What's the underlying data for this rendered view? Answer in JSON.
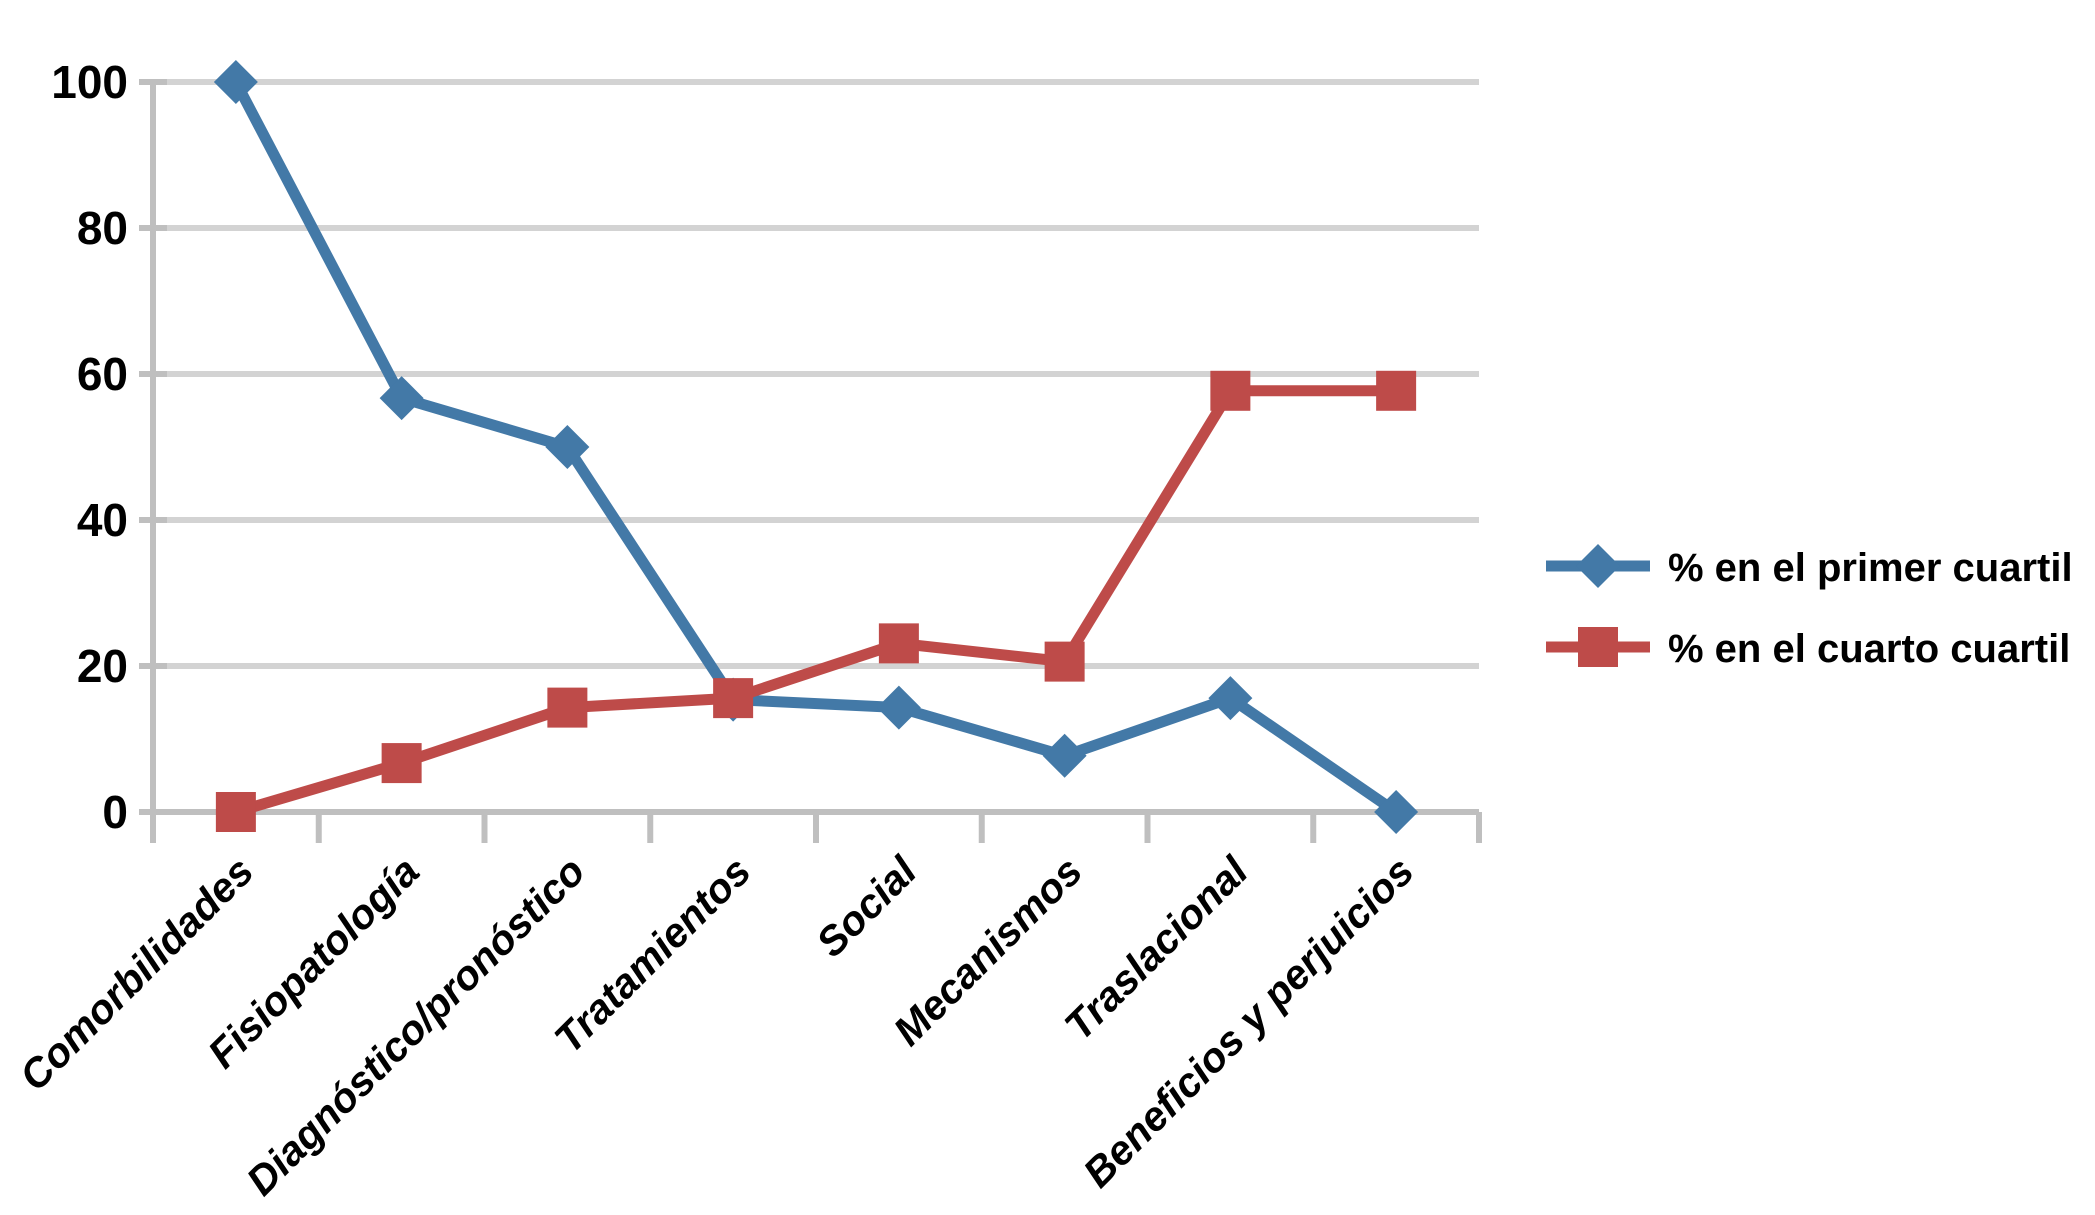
{
  "chart_data": {
    "type": "line",
    "title": "",
    "xlabel": "",
    "ylabel": "",
    "categories": [
      "Comorbilidades",
      "Fisiopatología",
      "Diagnóstico/pronóstico",
      "Tratamientos",
      "Social",
      "Mecanismos",
      "Traslacional",
      "Beneficios y perjuicios"
    ],
    "series": [
      {
        "name": "% en el primer cuartil",
        "marker": "diamond",
        "color": "#4379a7",
        "values": [
          100,
          56.7,
          50,
          15.4,
          14.3,
          7.7,
          15.6,
          0
        ]
      },
      {
        "name": "% en el cuarto cuartil",
        "marker": "square",
        "color": "#be4b49",
        "values": [
          0,
          6.7,
          14.3,
          15.6,
          23.1,
          20.6,
          57.7,
          57.7
        ]
      }
    ],
    "ylim": [
      0,
      100
    ],
    "ytick_step": 20,
    "ytick_labels": [
      "0",
      "20",
      "40",
      "60",
      "80",
      "100"
    ],
    "grid": true,
    "legend_position": "right"
  },
  "style": {
    "background": "#ffffff",
    "grid_color": "#d3d3d3",
    "axis_color": "#bfbfbf",
    "text_color": "#000000"
  }
}
